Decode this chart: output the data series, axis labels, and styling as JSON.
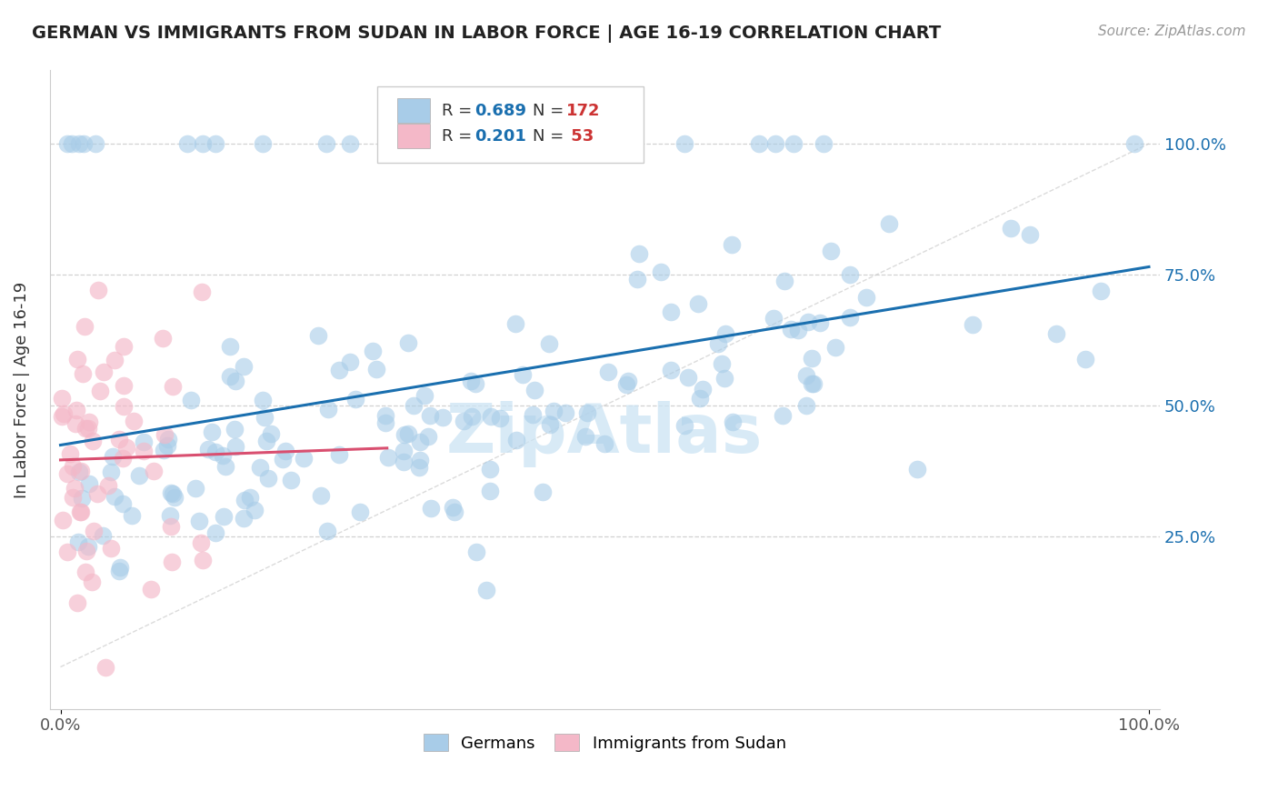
{
  "title": "GERMAN VS IMMIGRANTS FROM SUDAN IN LABOR FORCE | AGE 16-19 CORRELATION CHART",
  "source": "Source: ZipAtlas.com",
  "ylabel": "In Labor Force | Age 16-19",
  "watermark": "ZipAtlas",
  "german_R": 0.689,
  "german_N": 172,
  "sudan_R": 0.201,
  "sudan_N": 53,
  "german_color": "#a8cce8",
  "sudan_color": "#f4b8c8",
  "german_line_color": "#1a6faf",
  "sudan_line_color": "#d94f70",
  "background_color": "#ffffff",
  "grid_color": "#cccccc",
  "title_color": "#222222",
  "legend_R_color": "#1a6faf",
  "legend_N_color": "#cc3333",
  "right_tick_color": "#1a6faf",
  "xlim": [
    0.0,
    1.0
  ],
  "ylim": [
    -0.05,
    1.15
  ]
}
